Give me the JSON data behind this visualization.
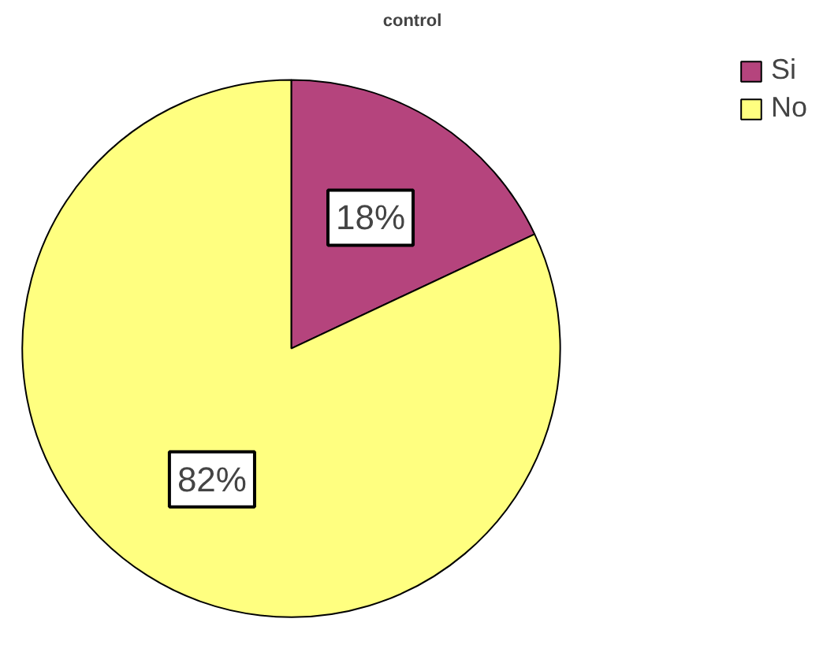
{
  "chart_data": {
    "type": "pie",
    "title": "control",
    "categories": [
      "Si",
      "No"
    ],
    "values": [
      18,
      82
    ],
    "colors": [
      "#b5447d",
      "#ffff80"
    ],
    "value_labels": [
      "18%",
      "82%"
    ],
    "legend": "top right"
  }
}
